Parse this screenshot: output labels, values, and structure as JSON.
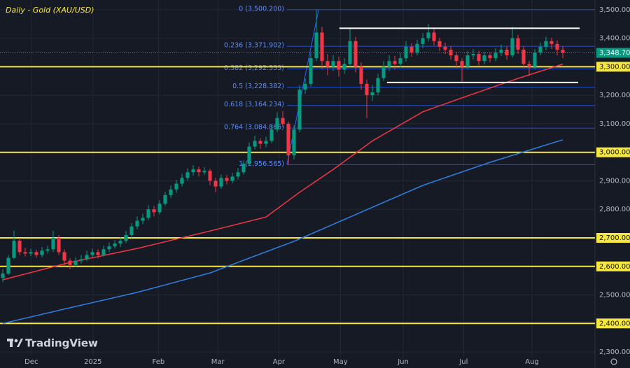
{
  "chart_data": {
    "type": "candlestick",
    "title": "Daily - Gold (XAU/USD)",
    "watermark": "TradingView",
    "up_color": "#089981",
    "down_color": "#f23645",
    "ylim": [
      2283,
      3534
    ],
    "xlim": [
      -0.5,
      105.75
    ],
    "yticks": [
      {
        "value": 3500,
        "label": "3,500.000"
      },
      {
        "value": 3400,
        "label": "3,400.000"
      },
      {
        "value": 3300,
        "label": "3,300.000"
      },
      {
        "value": 3200,
        "label": "3,200.000"
      },
      {
        "value": 3100,
        "label": "3,100.000"
      },
      {
        "value": 3000,
        "label": "3,000.000"
      },
      {
        "value": 2900,
        "label": "2,900.000"
      },
      {
        "value": 2800,
        "label": "2,800.000"
      },
      {
        "value": 2700,
        "label": "2,700.000"
      },
      {
        "value": 2600,
        "label": "2,600.000"
      },
      {
        "value": 2500,
        "label": "2,500.000"
      },
      {
        "value": 2400,
        "label": "2,400.000"
      },
      {
        "value": 2300,
        "label": "2,300.000"
      }
    ],
    "xticks": [
      {
        "value": 5.1,
        "label": "Dec"
      },
      {
        "value": 16.1,
        "label": "2025"
      },
      {
        "value": 27.8,
        "label": "Feb"
      },
      {
        "value": 38.4,
        "label": "Mar"
      },
      {
        "value": 49.3,
        "label": "Apr"
      },
      {
        "value": 60.3,
        "label": "May"
      },
      {
        "value": 71.5,
        "label": "Jun"
      },
      {
        "value": 82.3,
        "label": "Jul"
      },
      {
        "value": 94.5,
        "label": "Aug"
      }
    ],
    "grid": true,
    "last_price": {
      "value": 3348.705,
      "label": "3,348.705",
      "color": "#089981"
    },
    "levels": {
      "color": "#f5e642",
      "values": [
        3300,
        3000,
        2700,
        2600,
        2400
      ]
    },
    "fib": {
      "color": "#2962ff",
      "x_start": 50.75,
      "levels": [
        {
          "value": 3500.2,
          "label": "0 (3,500.200)"
        },
        {
          "value": 3371.902,
          "label": "0.236 (3,371.902)"
        },
        {
          "value": 3292.533,
          "label": "0.382 (3,292.533)"
        },
        {
          "value": 3228.382,
          "label": "0.5 (3,228.382)"
        },
        {
          "value": 3164.234,
          "label": "0.618 (3,164.234)"
        },
        {
          "value": 3084.865,
          "label": "0.764 (3,084.865)"
        },
        {
          "value": 2956.565,
          "label": "1 (2,956.565)"
        }
      ]
    },
    "trendline": {
      "color": "#2962ff",
      "x": [
        50.75,
        56.4
      ],
      "values": [
        2956.565,
        3500.2
      ]
    },
    "ranges": {
      "color": "#ffffff",
      "lines": [
        {
          "value": 3435,
          "x": [
            60.1,
            103
          ]
        },
        {
          "value": 3245,
          "x": [
            68.6,
            102.75
          ]
        }
      ]
    },
    "series": [
      {
        "name": "MA red",
        "color": "#f23645",
        "x": [
          0,
          12,
          24,
          37,
          47,
          53,
          59,
          66,
          75,
          82,
          92,
          100
        ],
        "values": [
          2553,
          2614,
          2663,
          2724,
          2773,
          2860,
          2940,
          3040,
          3142,
          3191,
          3259,
          3309
        ]
      },
      {
        "name": "MA blue",
        "color": "#2f7fe0",
        "x": [
          0,
          12,
          24,
          37,
          52,
          62,
          75,
          87,
          100
        ],
        "values": [
          2400,
          2455,
          2509,
          2577,
          2688,
          2773,
          2884,
          2965,
          3044
        ]
      }
    ],
    "candles": [
      [
        2560,
        2590,
        2545,
        2575
      ],
      [
        2575,
        2640,
        2570,
        2630
      ],
      [
        2630,
        2725,
        2625,
        2690
      ],
      [
        2690,
        2700,
        2640,
        2650
      ],
      [
        2650,
        2665,
        2635,
        2645
      ],
      [
        2645,
        2662,
        2636,
        2650
      ],
      [
        2650,
        2658,
        2630,
        2640
      ],
      [
        2640,
        2668,
        2632,
        2655
      ],
      [
        2655,
        2672,
        2645,
        2660
      ],
      [
        2660,
        2725,
        2650,
        2700
      ],
      [
        2700,
        2710,
        2640,
        2650
      ],
      [
        2650,
        2660,
        2600,
        2620
      ],
      [
        2620,
        2628,
        2590,
        2605
      ],
      [
        2605,
        2632,
        2598,
        2620
      ],
      [
        2620,
        2640,
        2610,
        2625
      ],
      [
        2625,
        2655,
        2618,
        2640
      ],
      [
        2640,
        2662,
        2632,
        2650
      ],
      [
        2650,
        2660,
        2628,
        2640
      ],
      [
        2640,
        2672,
        2635,
        2660
      ],
      [
        2660,
        2684,
        2650,
        2670
      ],
      [
        2670,
        2692,
        2662,
        2680
      ],
      [
        2680,
        2702,
        2668,
        2690
      ],
      [
        2690,
        2724,
        2682,
        2710
      ],
      [
        2710,
        2752,
        2700,
        2740
      ],
      [
        2740,
        2775,
        2730,
        2760
      ],
      [
        2760,
        2784,
        2748,
        2770
      ],
      [
        2770,
        2815,
        2762,
        2800
      ],
      [
        2800,
        2812,
        2775,
        2790
      ],
      [
        2790,
        2832,
        2782,
        2820
      ],
      [
        2820,
        2862,
        2812,
        2850
      ],
      [
        2850,
        2884,
        2840,
        2870
      ],
      [
        2870,
        2903,
        2858,
        2890
      ],
      [
        2890,
        2925,
        2880,
        2910
      ],
      [
        2910,
        2944,
        2900,
        2930
      ],
      [
        2930,
        2955,
        2918,
        2940
      ],
      [
        2940,
        2950,
        2915,
        2930
      ],
      [
        2930,
        2948,
        2920,
        2935
      ],
      [
        2935,
        2942,
        2885,
        2900
      ],
      [
        2900,
        2910,
        2860,
        2880
      ],
      [
        2880,
        2922,
        2872,
        2910
      ],
      [
        2910,
        2920,
        2888,
        2900
      ],
      [
        2900,
        2928,
        2892,
        2915
      ],
      [
        2915,
        2945,
        2905,
        2930
      ],
      [
        2930,
        2972,
        2922,
        2960
      ],
      [
        2960,
        3035,
        2952,
        3020
      ],
      [
        3020,
        3058,
        3010,
        3040
      ],
      [
        3040,
        3050,
        3012,
        3030
      ],
      [
        3030,
        3055,
        3018,
        3040
      ],
      [
        3040,
        3095,
        3032,
        3080
      ],
      [
        3080,
        3140,
        3070,
        3120
      ],
      [
        3120,
        3145,
        3088,
        3100
      ],
      [
        3100,
        3108,
        2956,
        2990
      ],
      [
        2990,
        3095,
        2975,
        3080
      ],
      [
        3080,
        3235,
        3070,
        3220
      ],
      [
        3220,
        3260,
        3205,
        3240
      ],
      [
        3240,
        3350,
        3230,
        3330
      ],
      [
        3330,
        3500,
        3320,
        3420
      ],
      [
        3420,
        3440,
        3290,
        3320
      ],
      [
        3320,
        3345,
        3270,
        3300
      ],
      [
        3300,
        3340,
        3285,
        3320
      ],
      [
        3320,
        3335,
        3265,
        3290
      ],
      [
        3290,
        3330,
        3275,
        3310
      ],
      [
        3310,
        3435,
        3300,
        3390
      ],
      [
        3390,
        3405,
        3280,
        3300
      ],
      [
        3300,
        3315,
        3220,
        3240
      ],
      [
        3240,
        3255,
        3120,
        3200
      ],
      [
        3200,
        3235,
        3180,
        3210
      ],
      [
        3210,
        3275,
        3200,
        3260
      ],
      [
        3260,
        3320,
        3250,
        3300
      ],
      [
        3300,
        3340,
        3285,
        3320
      ],
      [
        3320,
        3338,
        3290,
        3310
      ],
      [
        3310,
        3348,
        3298,
        3330
      ],
      [
        3330,
        3390,
        3318,
        3370
      ],
      [
        3370,
        3382,
        3335,
        3350
      ],
      [
        3350,
        3395,
        3340,
        3380
      ],
      [
        3380,
        3418,
        3365,
        3400
      ],
      [
        3400,
        3450,
        3388,
        3420
      ],
      [
        3420,
        3432,
        3375,
        3390
      ],
      [
        3390,
        3402,
        3355,
        3370
      ],
      [
        3370,
        3385,
        3345,
        3360
      ],
      [
        3360,
        3372,
        3325,
        3340
      ],
      [
        3340,
        3352,
        3295,
        3320
      ],
      [
        3320,
        3330,
        3248,
        3300
      ],
      [
        3300,
        3355,
        3290,
        3340
      ],
      [
        3340,
        3362,
        3325,
        3345
      ],
      [
        3345,
        3356,
        3305,
        3320
      ],
      [
        3320,
        3352,
        3308,
        3340
      ],
      [
        3340,
        3350,
        3315,
        3330
      ],
      [
        3330,
        3365,
        3320,
        3350
      ],
      [
        3350,
        3378,
        3338,
        3360
      ],
      [
        3360,
        3372,
        3325,
        3340
      ],
      [
        3340,
        3440,
        3332,
        3400
      ],
      [
        3400,
        3412,
        3345,
        3360
      ],
      [
        3360,
        3372,
        3295,
        3310
      ],
      [
        3310,
        3320,
        3268,
        3300
      ],
      [
        3300,
        3362,
        3290,
        3350
      ],
      [
        3350,
        3385,
        3340,
        3370
      ],
      [
        3370,
        3405,
        3358,
        3390
      ],
      [
        3390,
        3402,
        3362,
        3380
      ],
      [
        3380,
        3392,
        3340,
        3360
      ],
      [
        3360,
        3372,
        3330,
        3348.705
      ]
    ]
  }
}
